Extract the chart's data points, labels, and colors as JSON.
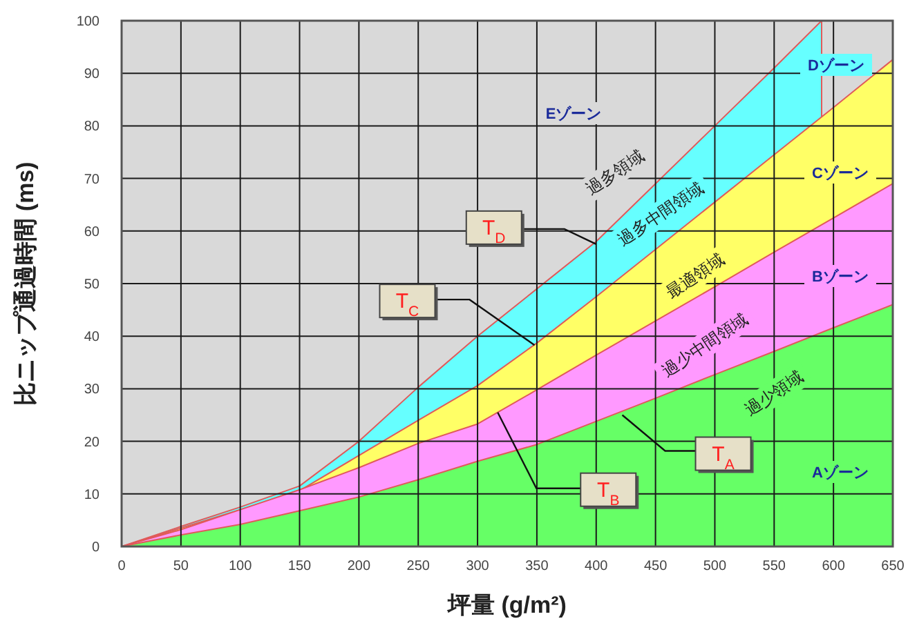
{
  "chart_data": {
    "type": "area",
    "xlabel": "坪量 (g/m²)",
    "ylabel": "比ニップ通過時間 (ms)",
    "x": [
      0,
      50,
      100,
      150,
      200,
      250,
      300,
      350,
      400,
      450,
      500,
      550,
      600,
      650
    ],
    "series": [
      {
        "color": "#66ff66",
        "values": [
          0,
          2.2,
          4.2,
          6.8,
          9.4,
          12.7,
          16.2,
          19.4,
          23.8,
          28.2,
          32.7,
          37.1,
          41.6,
          46
        ]
      },
      {
        "color": "#ff99ff",
        "values": [
          0,
          3.2,
          7,
          10.8,
          15,
          19.6,
          23.3,
          29.8,
          36.4,
          42.9,
          49.4,
          56,
          62.5,
          69
        ]
      },
      {
        "color": "#ffff66",
        "values": [
          0,
          3.5,
          7,
          10.6,
          17.3,
          24,
          30.6,
          38.7,
          47.5,
          56.5,
          65.5,
          74.5,
          83.5,
          92.6
        ]
      },
      {
        "color": "#66ffff",
        "x": [
          0,
          50,
          100,
          150,
          200,
          250,
          300,
          350,
          400,
          450,
          500,
          550,
          590
        ],
        "values": [
          0,
          3.8,
          7.5,
          11.5,
          20,
          30.3,
          40,
          49,
          58,
          69,
          80,
          91,
          100
        ]
      }
    ],
    "xlim": [
      0,
      650
    ],
    "ylim": [
      0,
      100
    ],
    "xticks": [
      0,
      50,
      100,
      150,
      200,
      250,
      300,
      350,
      400,
      450,
      500,
      550,
      600,
      650
    ],
    "yticks": [
      0,
      10,
      20,
      30,
      40,
      50,
      60,
      70,
      80,
      90,
      100
    ],
    "grid": true,
    "annotations": [
      "Aゾーン",
      "Bゾーン",
      "Cゾーン",
      "Dゾーン",
      "Eゾーン",
      "過多領域",
      "過多中間領域",
      "最適領域",
      "過少中間領域",
      "過少領域",
      {
        "text": "T$_{A}$",
        "x": 422,
        "y": 25
      },
      {
        "text": "T$_{B}$",
        "x": 317,
        "y": 25.5
      },
      {
        "text": "T$_{C}$",
        "x": 348,
        "y": 38.3
      },
      {
        "text": "T$_{D}$",
        "x": 400,
        "y": 57.5
      }
    ]
  }
}
